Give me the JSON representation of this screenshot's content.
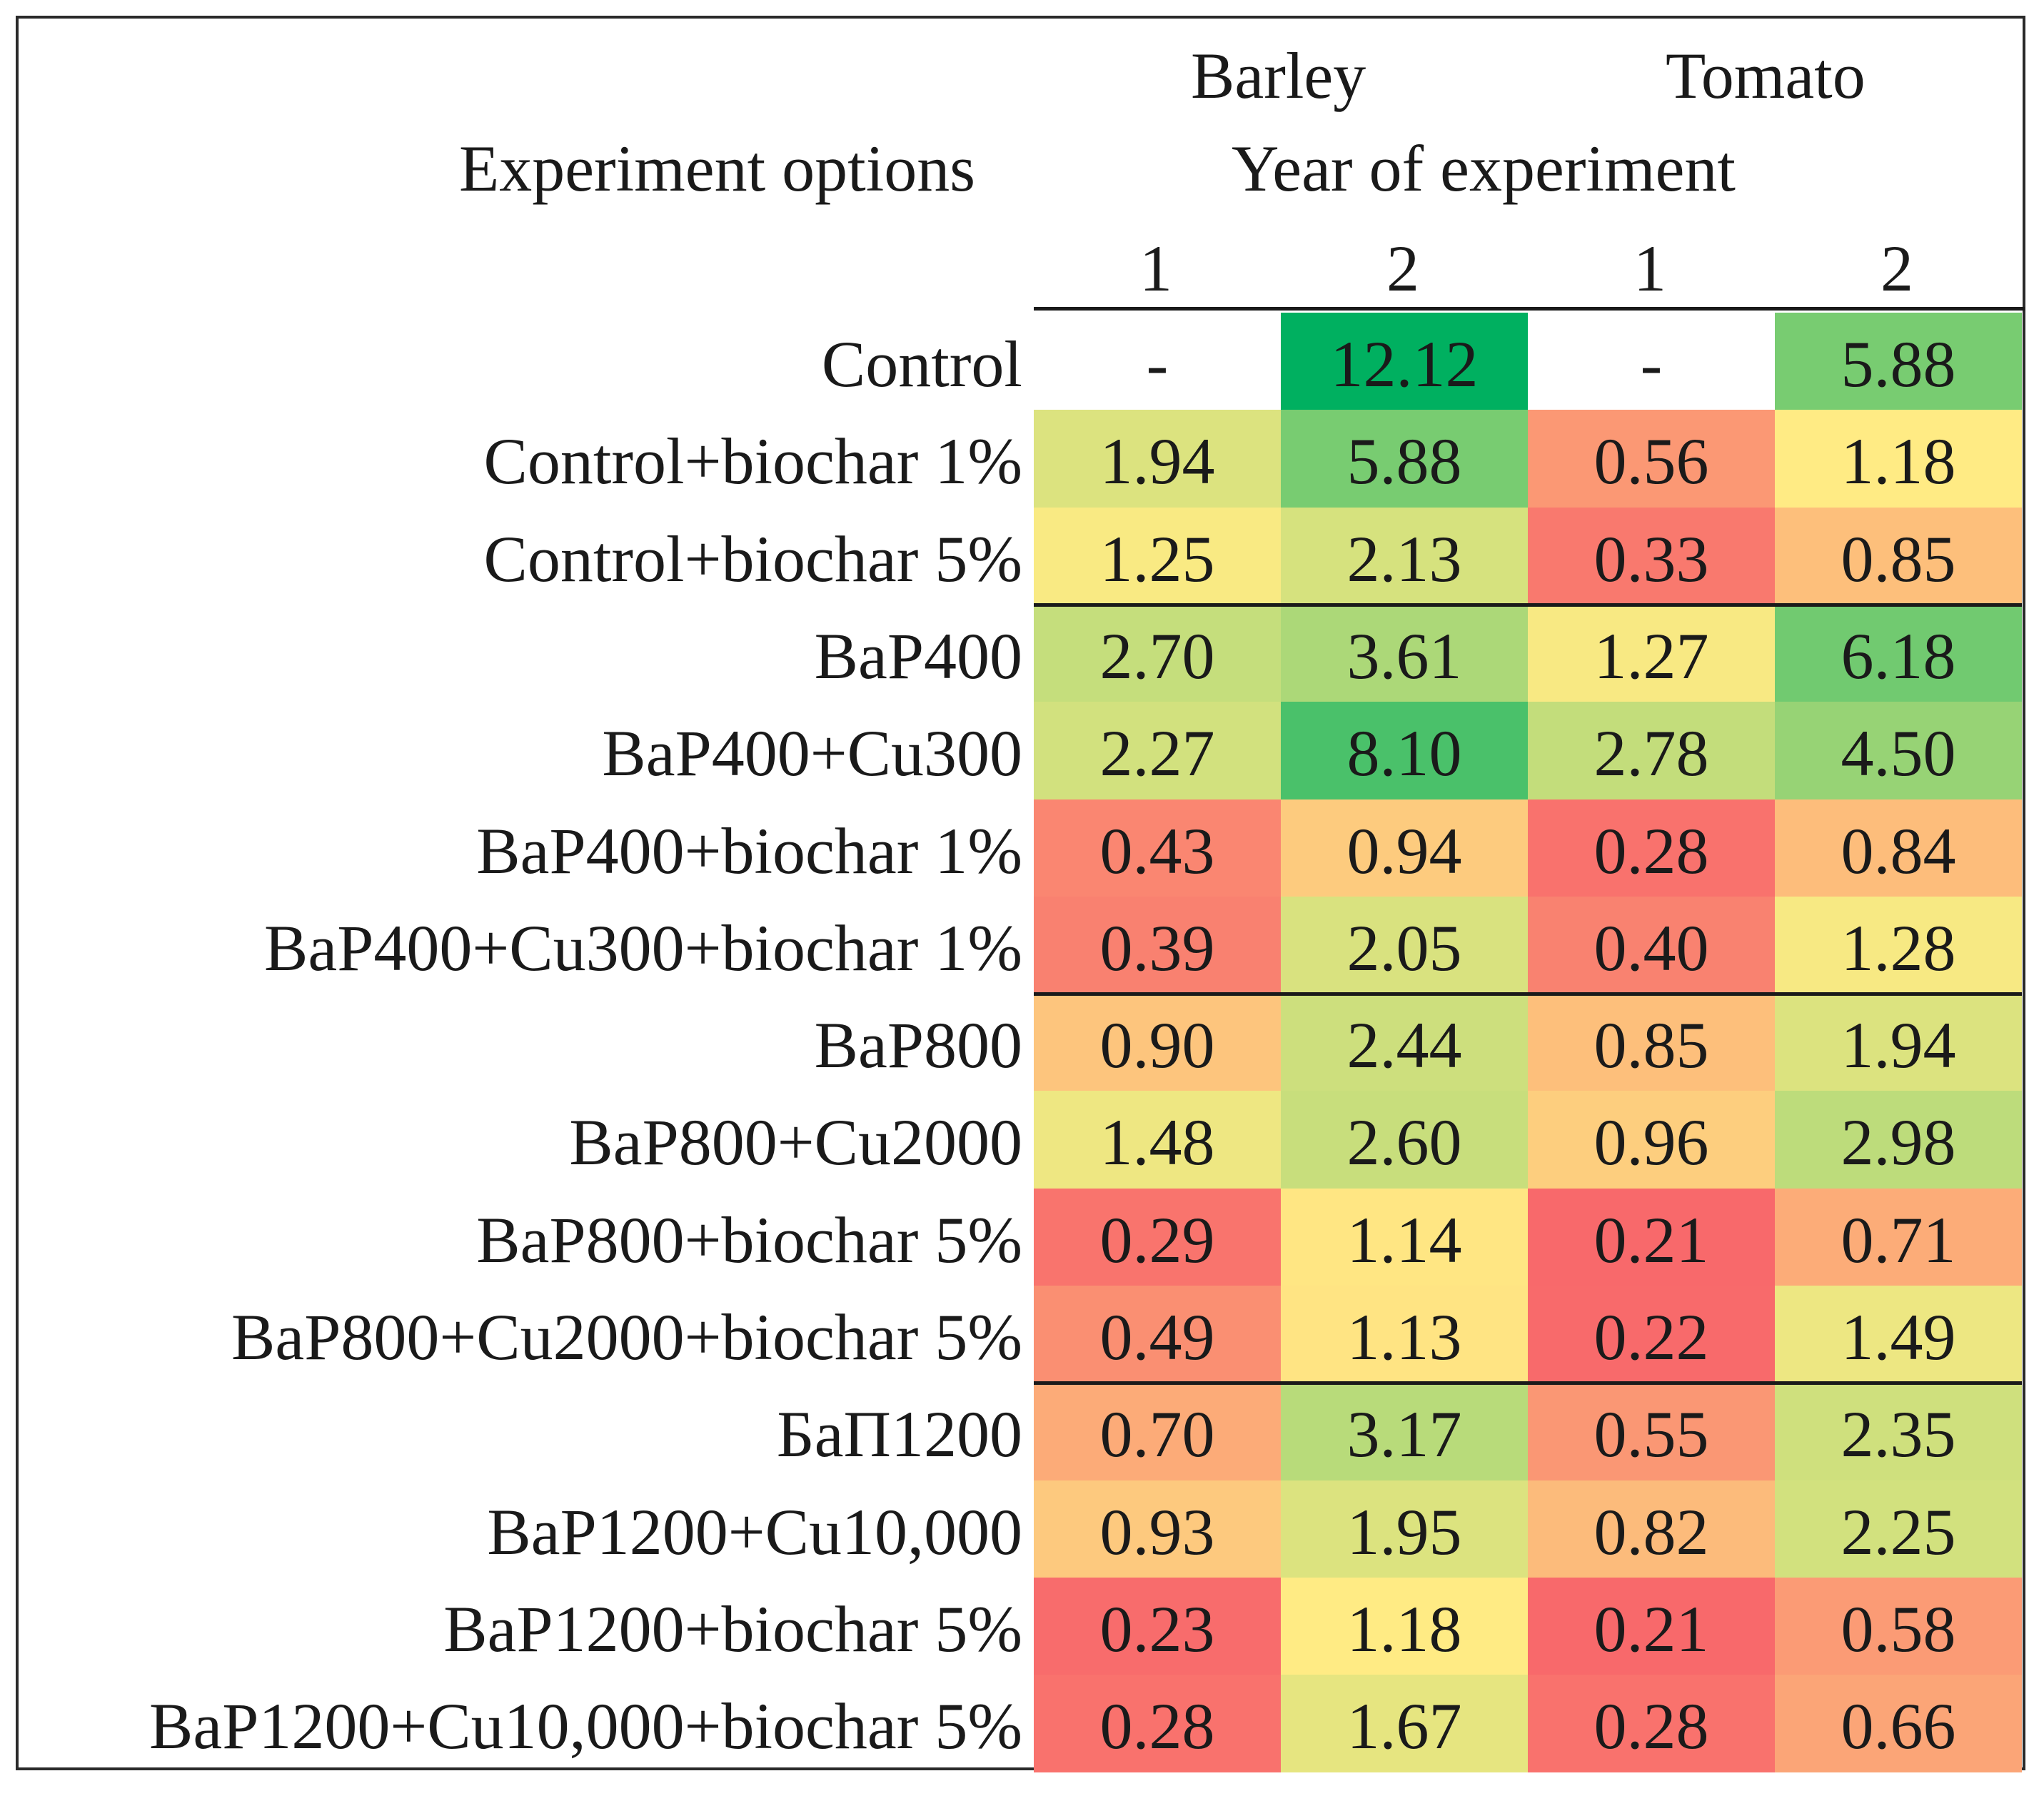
{
  "chart_data": {
    "type": "heatmap",
    "row_header": "Experiment options",
    "crop_headers": [
      "Barley",
      "Tomato"
    ],
    "year_header": "Year of experiment",
    "columns": [
      {
        "crop": "Barley",
        "year": "1"
      },
      {
        "crop": "Barley",
        "year": "2"
      },
      {
        "crop": "Tomato",
        "year": "1"
      },
      {
        "crop": "Tomato",
        "year": "2"
      }
    ],
    "rows": [
      {
        "label": "Control",
        "values": [
          "-",
          "12.12",
          "-",
          "5.88"
        ]
      },
      {
        "label": "Control+biochar 1%",
        "values": [
          "1.94",
          "5.88",
          "0.56",
          "1.18"
        ]
      },
      {
        "label": "Control+biochar 5%",
        "values": [
          "1.25",
          "2.13",
          "0.33",
          "0.85"
        ]
      },
      {
        "label": "BaP400",
        "values": [
          "2.70",
          "3.61",
          "1.27",
          "6.18"
        ]
      },
      {
        "label": "BaP400+Cu300",
        "values": [
          "2.27",
          "8.10",
          "2.78",
          "4.50"
        ]
      },
      {
        "label": "BaP400+biochar 1%",
        "values": [
          "0.43",
          "0.94",
          "0.28",
          "0.84"
        ]
      },
      {
        "label": "BaP400+Cu300+biochar 1%",
        "values": [
          "0.39",
          "2.05",
          "0.40",
          "1.28"
        ]
      },
      {
        "label": "BaP800",
        "values": [
          "0.90",
          "2.44",
          "0.85",
          "1.94"
        ]
      },
      {
        "label": "BaP800+Cu2000",
        "values": [
          "1.48",
          "2.60",
          "0.96",
          "2.98"
        ]
      },
      {
        "label": "BaP800+biochar 5%",
        "values": [
          "0.29",
          "1.14",
          "0.21",
          "0.71"
        ]
      },
      {
        "label": "BaP800+Cu2000+biochar 5%",
        "values": [
          "0.49",
          "1.13",
          "0.22",
          "1.49"
        ]
      },
      {
        "label": "БаП1200",
        "values": [
          "0.70",
          "3.17",
          "0.55",
          "2.35"
        ]
      },
      {
        "label": "BaP1200+Cu10,000",
        "values": [
          "0.93",
          "1.95",
          "0.82",
          "2.25"
        ]
      },
      {
        "label": "BaP1200+biochar 5%",
        "values": [
          "0.23",
          "1.18",
          "0.21",
          "0.58"
        ]
      },
      {
        "label": "BaP1200+Cu10,000+biochar 5%",
        "values": [
          "0.28",
          "1.67",
          "0.28",
          "0.66"
        ]
      }
    ],
    "group_separators_after_rows": [
      2,
      6,
      10
    ],
    "color_scale": {
      "low": "#f8696b",
      "mid": "#ffeb84",
      "high": "#00b060"
    }
  }
}
